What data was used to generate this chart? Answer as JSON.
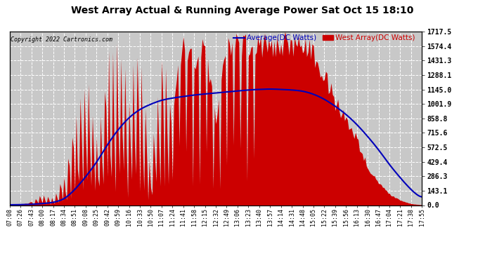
{
  "title": "West Array Actual & Running Average Power Sat Oct 15 18:10",
  "copyright": "Copyright 2022 Cartronics.com",
  "ylabel_right_vals": [
    0.0,
    143.1,
    286.3,
    429.4,
    572.5,
    715.6,
    858.8,
    1001.9,
    1145.0,
    1288.1,
    1431.3,
    1574.4,
    1717.5
  ],
  "ymax": 1717.5,
  "ymin": 0.0,
  "legend_avg": "Average(DC Watts)",
  "legend_west": "West Array(DC Watts)",
  "bg_color": "#ffffff",
  "plot_bg_color": "#c8c8c8",
  "grid_color": "#ffffff",
  "fill_color": "#cc0000",
  "line_color": "#0000bb",
  "title_color": "#000000",
  "copyright_color": "#000000",
  "avg_legend_color": "#0000bb",
  "west_legend_color": "#cc0000",
  "time_labels": [
    "07:08",
    "07:26",
    "07:43",
    "08:00",
    "08:17",
    "08:34",
    "08:51",
    "09:08",
    "09:25",
    "09:42",
    "09:59",
    "10:16",
    "10:33",
    "10:50",
    "11:07",
    "11:24",
    "11:41",
    "11:58",
    "12:15",
    "12:32",
    "12:49",
    "13:06",
    "13:23",
    "13:40",
    "13:57",
    "14:14",
    "14:31",
    "14:48",
    "15:05",
    "15:22",
    "15:39",
    "15:56",
    "16:13",
    "16:30",
    "16:47",
    "17:04",
    "17:21",
    "17:38",
    "17:55"
  ],
  "west_power": [
    5,
    8,
    12,
    25,
    45,
    80,
    200,
    350,
    500,
    900,
    1200,
    1400,
    1600,
    1717,
    1717,
    1550,
    1717,
    1717,
    1717,
    1700,
    1717,
    1717,
    1717,
    1717,
    1600,
    1717,
    1717,
    1717,
    1717,
    1600,
    1400,
    1200,
    900,
    650,
    400,
    200,
    80,
    30,
    5
  ],
  "west_power_spiky": [
    3,
    6,
    40,
    120,
    80,
    300,
    900,
    1400,
    700,
    1600,
    1717,
    1200,
    1717,
    400,
    1717,
    1100,
    1717,
    1500,
    1717,
    900,
    1717,
    1717,
    1717,
    1717,
    1717,
    1717,
    1717,
    1717,
    1600,
    1400,
    1100,
    900,
    700,
    400,
    250,
    120,
    50,
    15,
    3
  ],
  "running_avg": [
    3,
    5,
    8,
    15,
    25,
    55,
    150,
    280,
    420,
    600,
    750,
    870,
    950,
    1000,
    1040,
    1060,
    1075,
    1090,
    1100,
    1110,
    1120,
    1130,
    1140,
    1145,
    1150,
    1145,
    1140,
    1130,
    1100,
    1050,
    980,
    900,
    800,
    680,
    550,
    400,
    270,
    150,
    60
  ]
}
